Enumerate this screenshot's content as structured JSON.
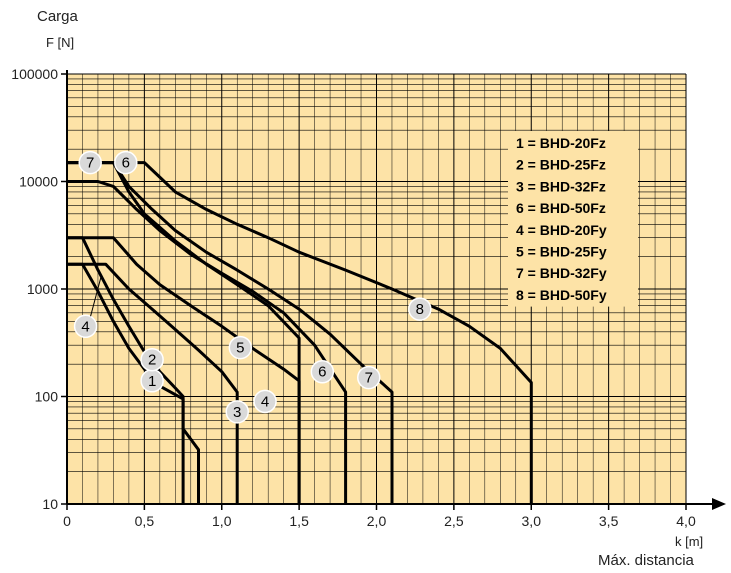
{
  "chart_data": {
    "type": "line",
    "ylabel_line1": "Carga",
    "ylabel_line2": "F [N]",
    "xlabel_line1": "k [m]",
    "xlabel_line2": "Máx. distancia",
    "x_ticks": [
      "0",
      "0,5",
      "1,0",
      "1,5",
      "2,0",
      "2,5",
      "3,0",
      "3,5",
      "4,0"
    ],
    "x_tick_values": [
      0,
      0.5,
      1.0,
      1.5,
      2.0,
      2.5,
      3.0,
      3.5,
      4.0
    ],
    "y_ticks": [
      "10",
      "100",
      "1000",
      "10000",
      "100000"
    ],
    "y_tick_values": [
      10,
      100,
      1000,
      10000,
      100000
    ],
    "xlim": [
      0,
      4.0
    ],
    "ylim": [
      10,
      100000
    ],
    "yscale": "log",
    "grid": true,
    "plot_bg": "#fde3a7",
    "grid_color": "#000000",
    "legend_placement": "right",
    "legend": [
      "1 = BHD-20Fz",
      "2 = BHD-25Fz",
      "3 = BHD-32Fz",
      "6 = BHD-50Fz",
      "4 = BHD-20Fy",
      "5 = BHD-25Fy",
      "7 = BHD-32Fy",
      "8 = BHD-50Fy"
    ],
    "series": [
      {
        "name": "1",
        "points": [
          [
            0,
            1700
          ],
          [
            0.1,
            1700
          ],
          [
            0.2,
            950
          ],
          [
            0.3,
            500
          ],
          [
            0.4,
            280
          ],
          [
            0.5,
            180
          ],
          [
            0.6,
            125
          ],
          [
            0.75,
            95
          ],
          [
            0.75,
            10
          ]
        ]
      },
      {
        "name": "2",
        "points": [
          [
            0,
            3000
          ],
          [
            0.1,
            3000
          ],
          [
            0.2,
            1500
          ],
          [
            0.3,
            800
          ],
          [
            0.4,
            450
          ],
          [
            0.5,
            260
          ],
          [
            0.6,
            170
          ],
          [
            0.7,
            120
          ],
          [
            0.75,
            100
          ],
          [
            0.75,
            50
          ],
          [
            0.85,
            32
          ],
          [
            0.85,
            10
          ]
        ]
      },
      {
        "name": "3",
        "points": [
          [
            0,
            1700
          ],
          [
            0.25,
            1700
          ],
          [
            0.4,
            1000
          ],
          [
            0.55,
            650
          ],
          [
            0.7,
            420
          ],
          [
            0.85,
            270
          ],
          [
            1.0,
            170
          ],
          [
            1.1,
            110
          ],
          [
            1.1,
            10
          ]
        ]
      },
      {
        "name": "4",
        "points": [
          [
            0,
            3000
          ],
          [
            0.3,
            3000
          ],
          [
            0.45,
            1700
          ],
          [
            0.6,
            1100
          ],
          [
            0.8,
            700
          ],
          [
            1.0,
            450
          ],
          [
            1.2,
            280
          ],
          [
            1.4,
            180
          ],
          [
            1.5,
            140
          ],
          [
            1.5,
            10
          ]
        ]
      },
      {
        "name": "5",
        "points": [
          [
            0,
            15000
          ],
          [
            0.3,
            15000
          ],
          [
            0.4,
            8000
          ],
          [
            0.5,
            5000
          ],
          [
            0.7,
            2800
          ],
          [
            0.9,
            1700
          ],
          [
            1.1,
            1100
          ],
          [
            1.3,
            700
          ],
          [
            1.5,
            350
          ],
          [
            1.5,
            10
          ]
        ]
      },
      {
        "name": "6",
        "points": [
          [
            0,
            10000
          ],
          [
            0.2,
            10000
          ],
          [
            0.3,
            9000
          ],
          [
            0.45,
            5500
          ],
          [
            0.6,
            3500
          ],
          [
            0.8,
            2100
          ],
          [
            1.0,
            1400
          ],
          [
            1.2,
            950
          ],
          [
            1.4,
            600
          ],
          [
            1.6,
            300
          ],
          [
            1.8,
            110
          ],
          [
            1.8,
            10
          ]
        ]
      },
      {
        "name": "7",
        "points": [
          [
            0,
            15000
          ],
          [
            0.3,
            15000
          ],
          [
            0.4,
            9000
          ],
          [
            0.55,
            5500
          ],
          [
            0.7,
            3500
          ],
          [
            0.9,
            2200
          ],
          [
            1.1,
            1500
          ],
          [
            1.3,
            1000
          ],
          [
            1.5,
            650
          ],
          [
            1.7,
            380
          ],
          [
            1.9,
            200
          ],
          [
            2.1,
            110
          ],
          [
            2.1,
            10
          ]
        ]
      },
      {
        "name": "8",
        "points": [
          [
            0,
            15000
          ],
          [
            0.5,
            15000
          ],
          [
            0.7,
            8000
          ],
          [
            0.9,
            5500
          ],
          [
            1.1,
            4000
          ],
          [
            1.3,
            3000
          ],
          [
            1.5,
            2200
          ],
          [
            1.8,
            1500
          ],
          [
            2.1,
            1000
          ],
          [
            2.4,
            650
          ],
          [
            2.6,
            450
          ],
          [
            2.8,
            280
          ],
          [
            3.0,
            135
          ],
          [
            3.0,
            10
          ]
        ]
      }
    ],
    "markers": [
      {
        "label": "1",
        "x": 0.55,
        "y": 140
      },
      {
        "label": "2",
        "x": 0.55,
        "y": 220
      },
      {
        "label": "3",
        "x": 1.1,
        "y": 72
      },
      {
        "label": "4",
        "x": 1.28,
        "y": 90
      },
      {
        "label": "4",
        "x": 0.12,
        "y": 450
      },
      {
        "label": "5",
        "x": 1.12,
        "y": 285
      },
      {
        "label": "6",
        "x": 1.65,
        "y": 170
      },
      {
        "label": "6",
        "x": 0.38,
        "y": 15000
      },
      {
        "label": "7",
        "x": 1.95,
        "y": 150
      },
      {
        "label": "7",
        "x": 0.15,
        "y": 15000
      },
      {
        "label": "8",
        "x": 2.28,
        "y": 650
      }
    ]
  }
}
